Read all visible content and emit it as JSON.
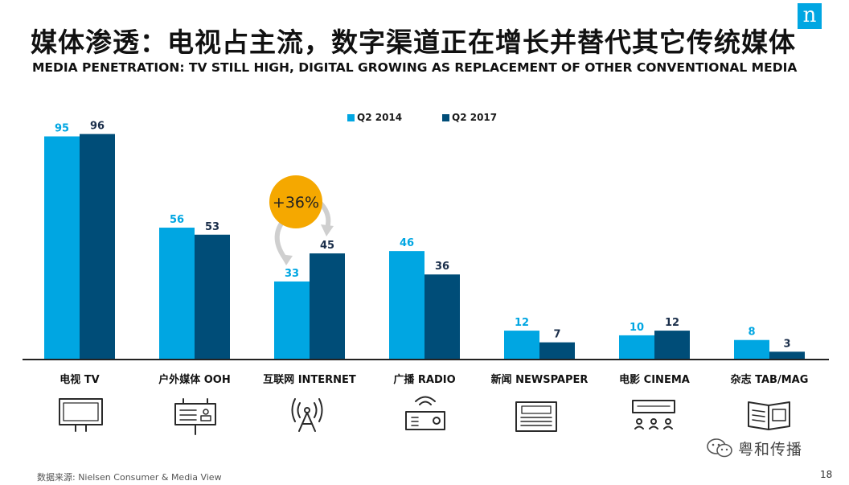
{
  "header": {
    "title": "媒体渗透：电视占主流，数字渠道正在增长并替代其它传统媒体",
    "subtitle": "MEDIA PENETRATION: TV STILL HIGH, DIGITAL GROWING AS REPLACEMENT OF OTHER CONVENTIONAL MEDIA",
    "logo": "n"
  },
  "colors": {
    "q2_2014": "#00a6e2",
    "q2_2017": "#004d78",
    "label_2014": "#00a6e2",
    "label_2017": "#1a2e4a",
    "callout": "#f5a800",
    "arrow": "#cfcfcf",
    "axis": "#222222"
  },
  "chart_data": {
    "type": "bar",
    "title": "",
    "xlabel": "",
    "ylabel": "",
    "ylim": [
      0,
      100
    ],
    "grid": false,
    "legend": "top-center",
    "categories": [
      "电视 TV",
      "户外媒体 OOH",
      "互联网 INTERNET",
      "广播 RADIO",
      "新闻 NEWSPAPER",
      "电影 CINEMA",
      "杂志 TAB/MAG"
    ],
    "icons": [
      "tv-icon",
      "billboard-icon",
      "antenna-tower-icon",
      "radio-icon",
      "newspaper-icon",
      "cinema-icon",
      "magazine-icon"
    ],
    "series": [
      {
        "name": "Q2 2014",
        "values": [
          95,
          56,
          33,
          46,
          12,
          10,
          8
        ]
      },
      {
        "name": "Q2 2017",
        "values": [
          96,
          53,
          45,
          36,
          7,
          12,
          3
        ]
      }
    ],
    "annotations": [
      {
        "text": "+36%",
        "category": "互联网 INTERNET"
      }
    ]
  },
  "footer": {
    "source": "数据来源: Nielsen Consumer & Media View",
    "page_number": "18",
    "watermark": "粤和传播"
  }
}
